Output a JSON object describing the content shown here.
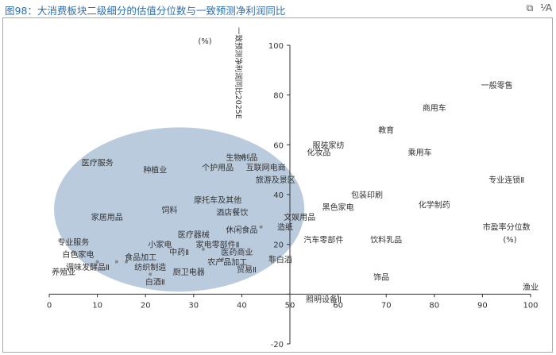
{
  "header": {
    "title": "图98：大消费板块二级细分的估值分位数与一致预测净利润同比",
    "icon_copy": "copy-icon",
    "icon_zoom": "zoom-text-icon",
    "zoom_label": "⅟A"
  },
  "chart_data": {
    "type": "scatter",
    "title": "",
    "xlabel": "市盈率分位数 (%)",
    "ylabel": "一致预测净利润同比2025E (%)",
    "xlabel_main": "市盈率分位数",
    "xlabel_unit": "(%)",
    "ylabel_main": "一致预测净利润同比2025E",
    "ylabel_unit": "(%)",
    "xlim": [
      0,
      100
    ],
    "ylim": [
      -20,
      100
    ],
    "xticks": [
      0,
      10,
      20,
      30,
      40,
      50,
      60,
      70,
      80,
      90,
      100
    ],
    "yticks": [
      -20,
      0,
      20,
      40,
      60,
      80,
      100
    ],
    "axis_cross": {
      "x": 50,
      "y": 0
    },
    "highlight_ellipse": {
      "cx": 27,
      "cy": 34,
      "rx": 26,
      "ry": 33,
      "color": "#b7c8dc"
    },
    "point_color": "#8a8a8a",
    "points": [
      {
        "label": "一般零售",
        "x": 93,
        "y": 84
      },
      {
        "label": "商用车",
        "x": 80,
        "y": 75
      },
      {
        "label": "教育",
        "x": 70,
        "y": 66
      },
      {
        "label": "乘用车",
        "x": 77,
        "y": 57
      },
      {
        "label": "服装家纺",
        "x": 58,
        "y": 60
      },
      {
        "label": "化妆品",
        "x": 56,
        "y": 57
      },
      {
        "label": "生物制品",
        "x": 40,
        "y": 55
      },
      {
        "label": "医疗服务",
        "x": 10,
        "y": 53
      },
      {
        "label": "种植业",
        "x": 22,
        "y": 50
      },
      {
        "label": "个护用品",
        "x": 35,
        "y": 51
      },
      {
        "label": "互联网电商",
        "x": 45,
        "y": 51
      },
      {
        "label": "旅游及景区",
        "x": 47,
        "y": 46
      },
      {
        "label": "专业连锁Ⅱ",
        "x": 95,
        "y": 46
      },
      {
        "label": "包装印刷",
        "x": 66,
        "y": 40
      },
      {
        "label": "化学制药",
        "x": 80,
        "y": 36
      },
      {
        "label": "黑色家电",
        "x": 60,
        "y": 35
      },
      {
        "label": "摩托车及其他",
        "x": 35,
        "y": 38
      },
      {
        "label": "饲料",
        "x": 25,
        "y": 34
      },
      {
        "label": "酒店餐饮",
        "x": 38,
        "y": 33
      },
      {
        "label": "家居用品",
        "x": 12,
        "y": 31
      },
      {
        "label": "文娱用品",
        "x": 52,
        "y": 31
      },
      {
        "label": "市盈率分位数",
        "x": 95,
        "y": 27
      },
      {
        "label": "休闲食品",
        "x": 40,
        "y": 26
      },
      {
        "label": "医疗器械",
        "x": 30,
        "y": 24
      },
      {
        "label": "造纸",
        "x": 49,
        "y": 27
      },
      {
        "label": "汽车零部件",
        "x": 57,
        "y": 22
      },
      {
        "label": "饮料乳品",
        "x": 70,
        "y": 22
      },
      {
        "label": "专业服务",
        "x": 5,
        "y": 21
      },
      {
        "label": "小家电",
        "x": 23,
        "y": 20
      },
      {
        "label": "家电零部件Ⅱ",
        "x": 35,
        "y": 20
      },
      {
        "label": "中药Ⅱ",
        "x": 27,
        "y": 17
      },
      {
        "label": "医药商业",
        "x": 39,
        "y": 17
      },
      {
        "label": "白色家电",
        "x": 6,
        "y": 16
      },
      {
        "label": "食品加工",
        "x": 19,
        "y": 15
      },
      {
        "label": "非白酒",
        "x": 48,
        "y": 14
      },
      {
        "label": "农产品加工",
        "x": 37,
        "y": 13
      },
      {
        "label": "调味发酵品Ⅱ",
        "x": 8,
        "y": 11
      },
      {
        "label": "纺织制造",
        "x": 21,
        "y": 11
      },
      {
        "label": "养殖业",
        "x": 3,
        "y": 9
      },
      {
        "label": "厨卫电器",
        "x": 29,
        "y": 9
      },
      {
        "label": "贸易Ⅱ",
        "x": 41,
        "y": 10
      },
      {
        "label": "白酒Ⅱ",
        "x": 22,
        "y": 5
      },
      {
        "label": "饰品",
        "x": 69,
        "y": 7
      },
      {
        "label": "渔业",
        "x": 100,
        "y": 3
      },
      {
        "label": "照明设备Ⅱ",
        "x": 57,
        "y": -2
      }
    ],
    "grey_dots": [
      {
        "x": 40,
        "y": 55
      },
      {
        "x": 44,
        "y": 27
      },
      {
        "x": 32,
        "y": 18
      },
      {
        "x": 46,
        "y": 15
      },
      {
        "x": 36,
        "y": 14
      },
      {
        "x": 14,
        "y": 13
      },
      {
        "x": 10,
        "y": 13
      },
      {
        "x": 16,
        "y": 13
      },
      {
        "x": 21,
        "y": 8
      }
    ]
  }
}
